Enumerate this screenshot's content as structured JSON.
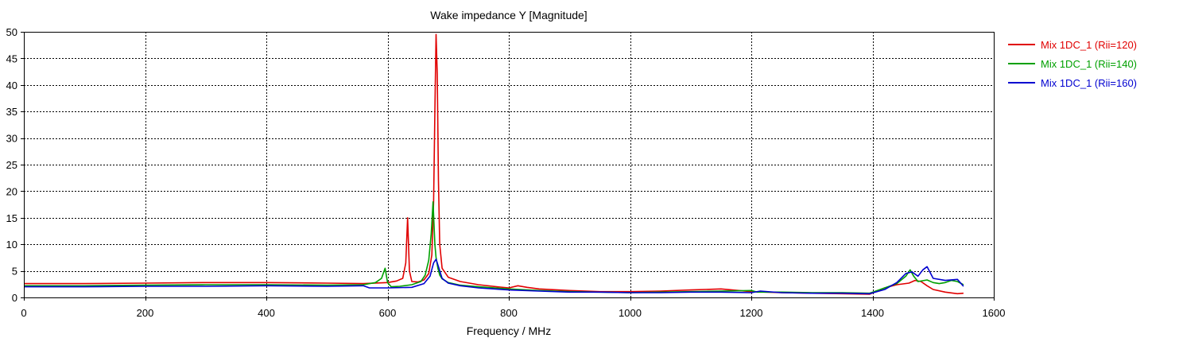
{
  "chart_data": {
    "type": "line",
    "title": "Wake impedance Y [Magnitude]",
    "xlabel": "Frequency / MHz",
    "ylabel": "",
    "xlim": [
      0,
      1600
    ],
    "ylim": [
      0,
      50
    ],
    "xticks": [
      0,
      200,
      400,
      600,
      800,
      1000,
      1200,
      1400,
      1600
    ],
    "yticks": [
      0,
      5,
      10,
      15,
      20,
      25,
      30,
      35,
      40,
      45,
      50
    ],
    "grid": true,
    "legend_position": "right",
    "series": [
      {
        "name": "Mix 1DC_1 (Rii=120)",
        "color": "#e00000",
        "x": [
          0,
          100,
          200,
          300,
          400,
          500,
          560,
          600,
          615,
          625,
          630,
          633,
          636,
          640,
          650,
          660,
          668,
          673,
          676,
          678,
          680,
          682,
          684,
          686,
          690,
          700,
          720,
          750,
          780,
          800,
          815,
          830,
          850,
          900,
          950,
          1000,
          1050,
          1100,
          1150,
          1200,
          1250,
          1300,
          1350,
          1395,
          1420,
          1440,
          1460,
          1470,
          1480,
          1490,
          1500,
          1520,
          1540,
          1550
        ],
        "y": [
          2.6,
          2.6,
          2.7,
          2.8,
          2.8,
          2.7,
          2.6,
          2.8,
          3.1,
          3.6,
          6.5,
          15,
          5,
          3,
          2.9,
          3.3,
          4.5,
          8,
          18,
          35,
          49.5,
          42,
          22,
          10,
          5.5,
          3.8,
          3.0,
          2.4,
          2.0,
          1.8,
          2.2,
          1.9,
          1.6,
          1.3,
          1.1,
          1.1,
          1.2,
          1.4,
          1.6,
          1.1,
          0.9,
          0.8,
          0.7,
          0.6,
          1.8,
          2.4,
          2.7,
          3.2,
          3.0,
          2.2,
          1.5,
          1.0,
          0.7,
          0.8
        ]
      },
      {
        "name": "Mix 1DC_1 (Rii=140)",
        "color": "#00a000",
        "x": [
          0,
          100,
          200,
          300,
          400,
          500,
          560,
          580,
          590,
          596,
          600,
          606,
          620,
          640,
          655,
          662,
          668,
          672,
          675,
          678,
          680,
          683,
          686,
          690,
          700,
          720,
          750,
          800,
          850,
          900,
          950,
          1000,
          1050,
          1100,
          1150,
          1200,
          1210,
          1250,
          1300,
          1350,
          1395,
          1420,
          1440,
          1455,
          1462,
          1468,
          1475,
          1490,
          1500,
          1510,
          1520,
          1530,
          1540,
          1550
        ],
        "y": [
          2.2,
          2.2,
          2.3,
          2.4,
          2.4,
          2.3,
          2.4,
          2.8,
          3.6,
          5.5,
          2.8,
          2.0,
          2.1,
          2.4,
          3.0,
          4.2,
          7.0,
          12,
          18,
          10,
          7.5,
          5.5,
          4.2,
          3.5,
          2.8,
          2.3,
          2.0,
          1.6,
          1.3,
          1.1,
          1.0,
          0.9,
          1.0,
          1.1,
          1.2,
          1.3,
          1.0,
          1.0,
          0.9,
          0.9,
          0.8,
          1.8,
          2.6,
          4.0,
          5.2,
          4.0,
          3.0,
          3.3,
          2.8,
          2.6,
          2.8,
          3.2,
          3.0,
          2.4
        ]
      },
      {
        "name": "Mix 1DC_1 (Rii=160)",
        "color": "#0000d0",
        "x": [
          0,
          100,
          200,
          300,
          400,
          500,
          560,
          570,
          600,
          640,
          660,
          670,
          676,
          680,
          684,
          690,
          700,
          720,
          750,
          800,
          850,
          900,
          950,
          1000,
          1050,
          1100,
          1150,
          1200,
          1215,
          1250,
          1300,
          1350,
          1395,
          1420,
          1440,
          1455,
          1465,
          1475,
          1483,
          1490,
          1500,
          1520,
          1540,
          1550
        ],
        "y": [
          2.0,
          2.0,
          2.1,
          2.1,
          2.2,
          2.1,
          2.2,
          1.8,
          1.8,
          1.9,
          2.6,
          4.0,
          6.5,
          7.2,
          5.8,
          3.6,
          2.7,
          2.2,
          1.8,
          1.4,
          1.2,
          1.0,
          1.0,
          0.9,
          0.9,
          1.0,
          1.0,
          0.9,
          1.2,
          0.9,
          0.8,
          0.8,
          0.7,
          1.5,
          2.8,
          4.5,
          4.8,
          4.0,
          5.2,
          5.8,
          3.6,
          3.2,
          3.4,
          2.1
        ]
      }
    ]
  }
}
